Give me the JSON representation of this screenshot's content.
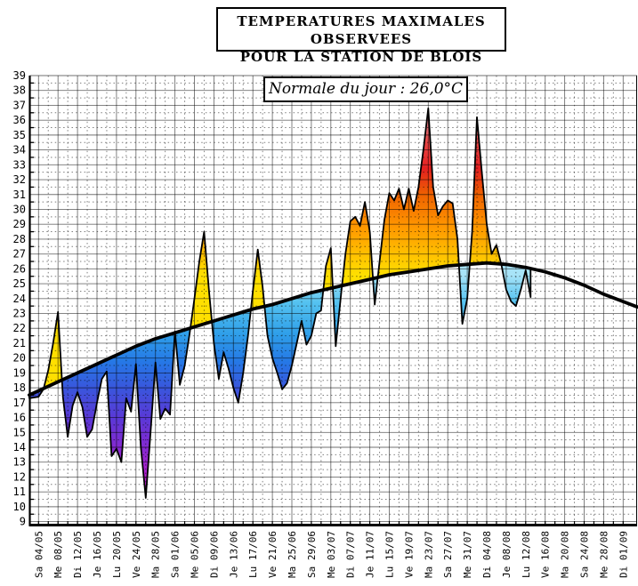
{
  "chart_data": {
    "type": "area",
    "title": "TEMPERATURES MAXIMALES OBSERVEES",
    "subtitle": "POUR LA STATION DE BLOIS",
    "annotation": "Normale du jour : 26,0°C",
    "ylim": [
      9,
      39
    ],
    "y_tick_step": 1,
    "grid": "solid every 1°C / 4 days, dotted every 0.5°C / 2 days",
    "legend_position": "none",
    "x_tick_interval_days": 4,
    "x_tick_labels": [
      "Sa 04/05",
      "Me 08/05",
      "Di 12/05",
      "Je 16/05",
      "Lu 20/05",
      "Ve 24/05",
      "Ma 28/05",
      "Sa 01/06",
      "Me 05/06",
      "Di 09/06",
      "Je 13/06",
      "Lu 17/06",
      "Ve 21/06",
      "Ma 25/06",
      "Sa 29/06",
      "Me 03/07",
      "Di 07/07",
      "Je 11/07",
      "Lu 15/07",
      "Ve 19/07",
      "Ma 23/07",
      "Sa 27/07",
      "Me 31/07",
      "Di 04/08",
      "Je 08/08",
      "Lu 12/08",
      "Ve 16/08",
      "Ma 20/08",
      "Sa 24/08",
      "Me 28/08",
      "Di 01/09"
    ],
    "series": [
      {
        "name": "temperature-maximale-observee",
        "start_date": "04/05",
        "interval_days": 1,
        "values": [
          17.4,
          17.9,
          19.2,
          21.0,
          23.1,
          17.4,
          14.7,
          16.8,
          17.7,
          16.7,
          14.7,
          15.2,
          17.0,
          18.6,
          19.1,
          13.4,
          13.9,
          13.0,
          17.3,
          16.4,
          19.6,
          14.0,
          10.6,
          15.0,
          19.7,
          15.9,
          16.6,
          16.2,
          21.8,
          18.2,
          19.5,
          21.6,
          24.0,
          26.5,
          28.5,
          24.5,
          21.0,
          18.6,
          20.4,
          19.3,
          18.0,
          17.0,
          19.0,
          21.5,
          24.5,
          27.3,
          24.8,
          21.5,
          20.0,
          19.0,
          17.9,
          18.3,
          19.5,
          21.0,
          22.5,
          20.9,
          21.5,
          23.0,
          23.2,
          26.2,
          27.4,
          20.8,
          24.0,
          27.0,
          29.2,
          29.5,
          28.9,
          30.5,
          28.5,
          23.6,
          26.5,
          29.3,
          31.1,
          30.6,
          31.4,
          30.0,
          31.4,
          29.9,
          31.5,
          34.0,
          36.8,
          31.5,
          29.6,
          30.2,
          30.6,
          30.4,
          28.0,
          22.3,
          24.0,
          28.5,
          36.2,
          32.5,
          29.0,
          27.0,
          27.6,
          26.3,
          24.6,
          23.8,
          23.5,
          24.6,
          25.9,
          24.1
        ]
      },
      {
        "name": "normale-du-jour-courbe",
        "start_date": "04/05",
        "interval_days": 4,
        "values": [
          17.8,
          18.4,
          19.0,
          19.6,
          20.2,
          20.8,
          21.3,
          21.7,
          22.1,
          22.5,
          22.9,
          23.3,
          23.6,
          24.0,
          24.4,
          24.7,
          25.0,
          25.3,
          25.6,
          25.8,
          26.0,
          26.2,
          26.3,
          26.4,
          26.3,
          26.1,
          25.8,
          25.4,
          24.9,
          24.3,
          23.8
        ]
      }
    ],
    "colors": {
      "above_normal_gradient_top_to_line": [
        "#f5c0ca",
        "#ef93a0",
        "#e94545",
        "#e32020",
        "#ef6300",
        "#ff9500",
        "#ffbf00",
        "#ffdf00"
      ],
      "below_normal_gradient_line_to_bottom": [
        "#a8e4f8",
        "#55c3f0",
        "#2f9fe9",
        "#2578e6",
        "#3a55dc",
        "#5b38d6",
        "#8629d1",
        "#b81fce",
        "#cc28c8"
      ],
      "normal_curve": "#000000",
      "grid": "#000000",
      "background": "#ffffff"
    }
  }
}
